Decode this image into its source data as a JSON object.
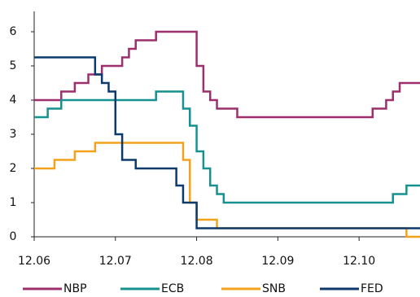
{
  "chart_data": {
    "type": "line",
    "step": true,
    "x": [
      "12.06",
      "01.07",
      "02.07",
      "03.07",
      "04.07",
      "05.07",
      "06.07",
      "07.07",
      "08.07",
      "09.07",
      "10.07",
      "11.07",
      "12.07",
      "01.08",
      "02.08",
      "03.08",
      "04.08",
      "05.08",
      "06.08",
      "07.08",
      "08.08",
      "09.08",
      "10.08",
      "11.08",
      "12.08",
      "01.09",
      "02.09",
      "03.09",
      "04.09",
      "05.09",
      "06.09",
      "07.09",
      "08.09",
      "09.09",
      "10.09",
      "11.09",
      "12.09",
      "01.10",
      "02.10",
      "03.10",
      "04.10",
      "05.10",
      "06.10",
      "07.10",
      "08.10",
      "09.10",
      "10.10",
      "11.10",
      "12.10",
      "01.11",
      "02.11",
      "03.11",
      "04.11",
      "05.11",
      "06.11",
      "07.11",
      "08.11"
    ],
    "xticks": [
      "12.06",
      "12.07",
      "12.08",
      "12.09",
      "12.10"
    ],
    "ylim": [
      0,
      6
    ],
    "yticks": [
      0,
      1,
      2,
      3,
      4,
      5,
      6
    ],
    "grid": false,
    "legend": "bottom",
    "series": [
      {
        "name": "NBP",
        "color": "#9c2f6c",
        "values": [
          4,
          4,
          4,
          4,
          4.25,
          4.25,
          4.5,
          4.5,
          4.75,
          4.75,
          5,
          5,
          5,
          5.25,
          5.5,
          5.75,
          5.75,
          5.75,
          6,
          6,
          6,
          6,
          6,
          6,
          5,
          4.25,
          4,
          3.75,
          3.75,
          3.75,
          3.5,
          3.5,
          3.5,
          3.5,
          3.5,
          3.5,
          3.5,
          3.5,
          3.5,
          3.5,
          3.5,
          3.5,
          3.5,
          3.5,
          3.5,
          3.5,
          3.5,
          3.5,
          3.5,
          3.5,
          3.75,
          3.75,
          4,
          4.25,
          4.5,
          4.5,
          4.5
        ]
      },
      {
        "name": "ECB",
        "color": "#16918f",
        "values": [
          3.5,
          3.5,
          3.75,
          3.75,
          4,
          4,
          4,
          4,
          4,
          4,
          4,
          4,
          4,
          4,
          4,
          4,
          4,
          4,
          4.25,
          4.25,
          4.25,
          4.25,
          3.75,
          3.25,
          2.5,
          2,
          1.5,
          1.25,
          1,
          1,
          1,
          1,
          1,
          1,
          1,
          1,
          1,
          1,
          1,
          1,
          1,
          1,
          1,
          1,
          1,
          1,
          1,
          1,
          1,
          1,
          1,
          1,
          1,
          1.25,
          1.25,
          1.5,
          1.5
        ]
      },
      {
        "name": "SNB",
        "color": "#f2a31b",
        "values": [
          2,
          2,
          2,
          2.25,
          2.25,
          2.25,
          2.5,
          2.5,
          2.5,
          2.75,
          2.75,
          2.75,
          2.75,
          2.75,
          2.75,
          2.75,
          2.75,
          2.75,
          2.75,
          2.75,
          2.75,
          2.75,
          2.25,
          1,
          0.5,
          0.5,
          0.5,
          0.25,
          0.25,
          0.25,
          0.25,
          0.25,
          0.25,
          0.25,
          0.25,
          0.25,
          0.25,
          0.25,
          0.25,
          0.25,
          0.25,
          0.25,
          0.25,
          0.25,
          0.25,
          0.25,
          0.25,
          0.25,
          0.25,
          0.25,
          0.25,
          0.25,
          0.25,
          0.25,
          0.25,
          0,
          0
        ]
      },
      {
        "name": "FED",
        "color": "#0c3a6d",
        "values": [
          5.25,
          5.25,
          5.25,
          5.25,
          5.25,
          5.25,
          5.25,
          5.25,
          5.25,
          4.75,
          4.5,
          4.25,
          3,
          2.25,
          2.25,
          2,
          2,
          2,
          2,
          2,
          2,
          1.5,
          1,
          1,
          0.25,
          0.25,
          0.25,
          0.25,
          0.25,
          0.25,
          0.25,
          0.25,
          0.25,
          0.25,
          0.25,
          0.25,
          0.25,
          0.25,
          0.25,
          0.25,
          0.25,
          0.25,
          0.25,
          0.25,
          0.25,
          0.25,
          0.25,
          0.25,
          0.25,
          0.25,
          0.25,
          0.25,
          0.25,
          0.25,
          0.25,
          0.25,
          0.25
        ]
      }
    ]
  }
}
